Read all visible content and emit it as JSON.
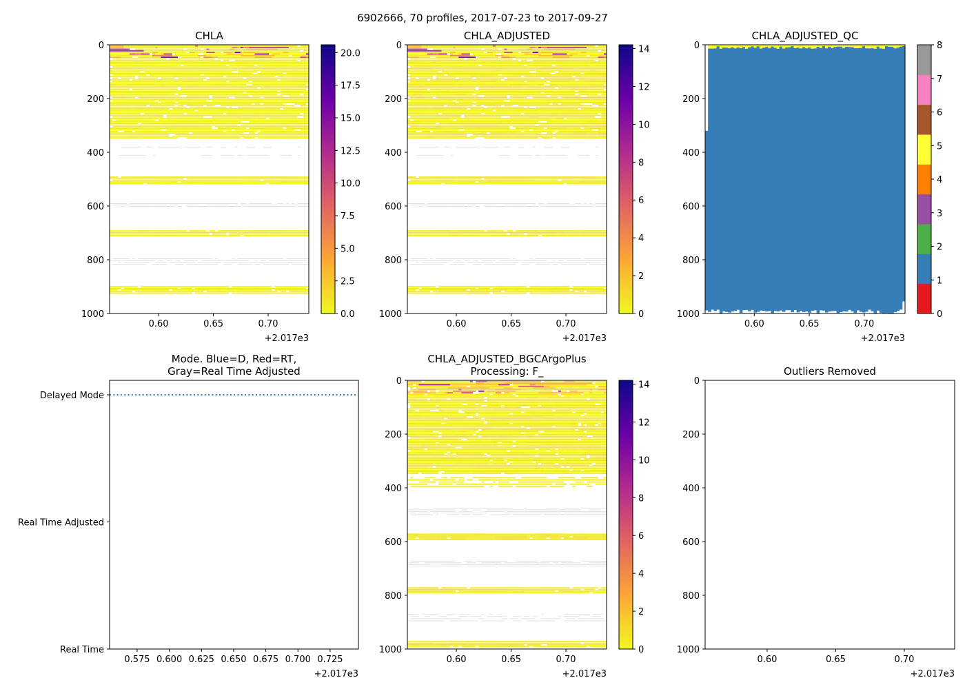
{
  "title": "6902666, 70 profiles, 2017-07-23 to 2017-09-27",
  "chart_data": [
    {
      "id": "chla",
      "type": "heatmap",
      "title": [
        "CHLA"
      ],
      "profiles": 70,
      "xlim": [
        0.5553,
        0.7371
      ],
      "ylim": [
        1000,
        0
      ],
      "xticks": [
        0.6,
        0.65,
        0.7
      ],
      "xtick_labels": [
        "0.60",
        "0.65",
        "0.70"
      ],
      "x_offset_label": "+2.017e3",
      "yticks": [
        0,
        200,
        400,
        600,
        800,
        1000
      ],
      "ytick_labels": [
        "0",
        "200",
        "400",
        "600",
        "800",
        "1000"
      ],
      "colorbar": {
        "cmap": "plasma_r",
        "vmin": 0,
        "vmax": 20.6,
        "ticks": [
          0,
          2.5,
          5,
          7.5,
          10,
          12.5,
          15,
          17.5,
          20
        ],
        "labels": [
          "0.0",
          "2.5",
          "5.0",
          "7.5",
          "10.0",
          "12.5",
          "15.0",
          "17.5",
          "20.0"
        ]
      },
      "seed": 11,
      "bands": [
        {
          "from": 2,
          "to": 345,
          "step": 6,
          "density": 0.85,
          "kind": "data"
        },
        {
          "from": 380,
          "to": 412,
          "step": 30,
          "density": 0.25,
          "kind": "gray"
        },
        {
          "from": 490,
          "to": 515,
          "step": 6,
          "density": 0.9,
          "kind": "data"
        },
        {
          "from": 590,
          "to": 602,
          "step": 5,
          "density": 0.5,
          "kind": "gray"
        },
        {
          "from": 690,
          "to": 710,
          "step": 6,
          "density": 0.95,
          "kind": "data"
        },
        {
          "from": 795,
          "to": 822,
          "step": 7,
          "density": 0.5,
          "kind": "gray"
        },
        {
          "from": 898,
          "to": 922,
          "step": 6,
          "density": 0.9,
          "kind": "data"
        }
      ]
    },
    {
      "id": "chla_adjusted",
      "type": "heatmap",
      "title": [
        "CHLA_ADJUSTED"
      ],
      "profiles": 70,
      "xlim": [
        0.5553,
        0.7371
      ],
      "ylim": [
        1000,
        0
      ],
      "xticks": [
        0.6,
        0.65,
        0.7
      ],
      "xtick_labels": [
        "0.60",
        "0.65",
        "0.70"
      ],
      "x_offset_label": "+2.017e3",
      "yticks": [
        0,
        200,
        400,
        600,
        800,
        1000
      ],
      "ytick_labels": [
        "0",
        "200",
        "400",
        "600",
        "800",
        "1000"
      ],
      "colorbar": {
        "cmap": "plasma_r",
        "vmin": 0,
        "vmax": 14.2,
        "ticks": [
          0,
          2,
          4,
          6,
          8,
          10,
          12,
          14
        ],
        "labels": [
          "0",
          "2",
          "4",
          "6",
          "8",
          "10",
          "12",
          "14"
        ]
      },
      "seed": 11,
      "bands": [
        {
          "from": 2,
          "to": 345,
          "step": 6,
          "density": 0.85,
          "kind": "data"
        },
        {
          "from": 380,
          "to": 412,
          "step": 30,
          "density": 0.25,
          "kind": "gray"
        },
        {
          "from": 490,
          "to": 515,
          "step": 6,
          "density": 0.9,
          "kind": "data"
        },
        {
          "from": 590,
          "to": 602,
          "step": 5,
          "density": 0.5,
          "kind": "gray"
        },
        {
          "from": 690,
          "to": 710,
          "step": 6,
          "density": 0.95,
          "kind": "data"
        },
        {
          "from": 795,
          "to": 822,
          "step": 7,
          "density": 0.5,
          "kind": "gray"
        },
        {
          "from": 898,
          "to": 922,
          "step": 6,
          "density": 0.9,
          "kind": "data"
        }
      ]
    },
    {
      "id": "chla_adjusted_qc",
      "type": "heatmap",
      "title": [
        "CHLA_ADJUSTED_QC"
      ],
      "profiles": 70,
      "xlim": [
        0.5553,
        0.7371
      ],
      "ylim": [
        1000,
        0
      ],
      "xticks": [
        0.6,
        0.65,
        0.7
      ],
      "xtick_labels": [
        "0.60",
        "0.65",
        "0.70"
      ],
      "x_offset_label": "+2.017e3",
      "yticks": [
        0,
        200,
        400,
        600,
        800,
        1000
      ],
      "ytick_labels": [
        "0",
        "200",
        "400",
        "600",
        "800",
        "1000"
      ],
      "qc": {
        "surface_flag": 5,
        "body_flag": 1,
        "surface_depth_range": [
          5,
          15
        ],
        "bottom_depth_range": [
          950,
          1000
        ],
        "first_profile_start_depth": 320
      },
      "colorbar": {
        "cmap": "discrete",
        "vmin": 0,
        "vmax": 8,
        "ticks": [
          0,
          1,
          2,
          3,
          4,
          5,
          6,
          7,
          8
        ],
        "labels": [
          "0",
          "1",
          "2",
          "3",
          "4",
          "5",
          "6",
          "7",
          "8"
        ],
        "colors": [
          "#e41a1c",
          "#377eb8",
          "#4daf4a",
          "#984ea3",
          "#ff7f00",
          "#ffff33",
          "#a65628",
          "#f781bf",
          "#999999"
        ]
      }
    },
    {
      "id": "mode",
      "type": "line",
      "title": [
        "Mode. Blue=D, Red=RT,",
        "Gray=Real Time Adjusted"
      ],
      "xlim": [
        0.5536,
        0.747
      ],
      "xticks": [
        0.575,
        0.6,
        0.625,
        0.65,
        0.675,
        0.7,
        0.725
      ],
      "xtick_labels": [
        "0.575",
        "0.600",
        "0.625",
        "0.650",
        "0.675",
        "0.700",
        "0.725"
      ],
      "x_offset_label": "+2.017e3",
      "categories": [
        "Real Time",
        "Real Time Adjusted",
        "Delayed Mode"
      ],
      "series": [
        {
          "name": "Delayed Mode",
          "color": "#1f77b4",
          "style": "dotted",
          "value": "Delayed Mode",
          "x": [
            0.5536,
            0.747
          ]
        }
      ]
    },
    {
      "id": "chla_adjusted_bgcargoplus",
      "type": "heatmap",
      "title": [
        "CHLA_ADJUSTED_BGCArgoPlus",
        "Processing: F_"
      ],
      "profiles": 70,
      "xlim": [
        0.5553,
        0.7371
      ],
      "ylim": [
        1000,
        0
      ],
      "xticks": [
        0.6,
        0.65,
        0.7
      ],
      "xtick_labels": [
        "0.60",
        "0.65",
        "0.70"
      ],
      "x_offset_label": "+2.017e3",
      "yticks": [
        0,
        200,
        400,
        600,
        800,
        1000
      ],
      "ytick_labels": [
        "0",
        "200",
        "400",
        "600",
        "800",
        "1000"
      ],
      "colorbar": {
        "cmap": "plasma_r",
        "vmin": 0,
        "vmax": 14.2,
        "ticks": [
          0,
          2,
          4,
          6,
          8,
          10,
          12,
          14
        ],
        "labels": [
          "0",
          "2",
          "4",
          "6",
          "8",
          "10",
          "12",
          "14"
        ]
      },
      "seed": 23,
      "bands": [
        {
          "from": 2,
          "to": 345,
          "step": 6,
          "density": 0.85,
          "kind": "data"
        },
        {
          "from": 360,
          "to": 395,
          "step": 8,
          "density": 0.4,
          "kind": "data"
        },
        {
          "from": 475,
          "to": 500,
          "step": 6,
          "density": 0.5,
          "kind": "gray"
        },
        {
          "from": 570,
          "to": 590,
          "step": 5,
          "density": 0.95,
          "kind": "data"
        },
        {
          "from": 672,
          "to": 690,
          "step": 6,
          "density": 0.5,
          "kind": "gray"
        },
        {
          "from": 770,
          "to": 790,
          "step": 6,
          "density": 0.9,
          "kind": "data"
        },
        {
          "from": 870,
          "to": 900,
          "step": 8,
          "density": 0.4,
          "kind": "gray"
        },
        {
          "from": 970,
          "to": 990,
          "step": 6,
          "density": 0.8,
          "kind": "data"
        }
      ]
    },
    {
      "id": "outliers_removed",
      "type": "scatter",
      "title": [
        "Outliers Removed"
      ],
      "xlim": [
        0.5548,
        0.7367
      ],
      "ylim": [
        1000,
        0
      ],
      "xticks": [
        0.6,
        0.65,
        0.7
      ],
      "xtick_labels": [
        "0.60",
        "0.65",
        "0.70"
      ],
      "x_offset_label": "+2.017e3",
      "yticks": [
        0,
        200,
        400,
        600,
        800,
        1000
      ],
      "ytick_labels": [
        "0",
        "200",
        "400",
        "600",
        "800",
        "1000"
      ],
      "points": []
    }
  ]
}
